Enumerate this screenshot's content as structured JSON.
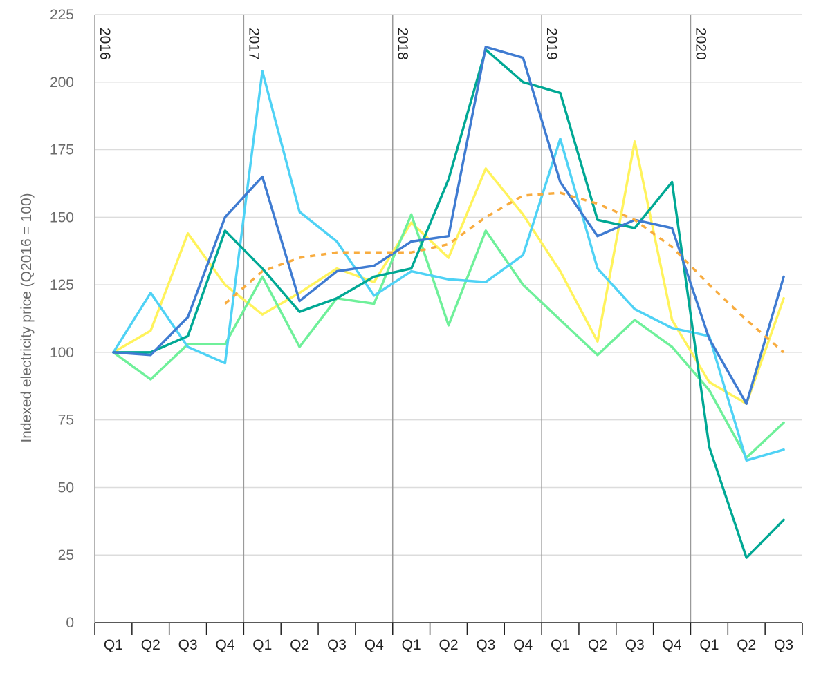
{
  "chart_data": {
    "type": "line",
    "title": "",
    "xlabel": "",
    "ylabel": "Indexed electricity price (Q2016 = 100)",
    "ylim": [
      0,
      225
    ],
    "yticks": [
      0,
      25,
      50,
      75,
      100,
      125,
      150,
      175,
      200,
      225
    ],
    "grid": true,
    "legend": "none",
    "years": [
      {
        "label": "2016",
        "start_index": 0
      },
      {
        "label": "2017",
        "start_index": 4
      },
      {
        "label": "2018",
        "start_index": 8
      },
      {
        "label": "2019",
        "start_index": 12
      },
      {
        "label": "2020",
        "start_index": 16
      }
    ],
    "categories": [
      "Q1",
      "Q2",
      "Q3",
      "Q4",
      "Q1",
      "Q2",
      "Q3",
      "Q4",
      "Q1",
      "Q2",
      "Q3",
      "Q4",
      "Q1",
      "Q2",
      "Q3",
      "Q4",
      "Q1",
      "Q2",
      "Q3"
    ],
    "series": [
      {
        "color": "#fff35c",
        "dashed": false,
        "values": [
          100,
          108,
          144,
          125,
          114,
          122,
          131,
          126,
          148,
          135,
          168,
          151,
          130,
          104,
          178,
          112,
          89,
          81,
          120
        ]
      },
      {
        "color": "#6ff09a",
        "dashed": false,
        "values": [
          100,
          90,
          103,
          103,
          128,
          102,
          120,
          118,
          151,
          110,
          145,
          125,
          112,
          99,
          112,
          102,
          86,
          61,
          74
        ]
      },
      {
        "color": "#4fd2f5",
        "dashed": false,
        "values": [
          100,
          122,
          102,
          96,
          204,
          152,
          141,
          121,
          130,
          127,
          126,
          136,
          179,
          131,
          116,
          109,
          106,
          60,
          64
        ]
      },
      {
        "color": "#00a894",
        "dashed": false,
        "values": [
          100,
          100,
          106,
          145,
          131,
          115,
          120,
          128,
          131,
          164,
          212,
          200,
          196,
          149,
          146,
          163,
          65,
          24,
          38
        ]
      },
      {
        "color": "#3f7bd1",
        "dashed": false,
        "values": [
          100,
          99,
          113,
          150,
          165,
          119,
          130,
          132,
          141,
          143,
          213,
          209,
          163,
          143,
          149,
          146,
          105,
          81,
          128
        ]
      },
      {
        "color": "#f8ac3f",
        "dashed": true,
        "values": [
          null,
          null,
          null,
          118,
          130,
          135,
          137,
          137,
          137,
          140,
          150,
          158,
          159,
          155,
          149,
          139,
          125,
          112,
          100
        ]
      }
    ]
  }
}
